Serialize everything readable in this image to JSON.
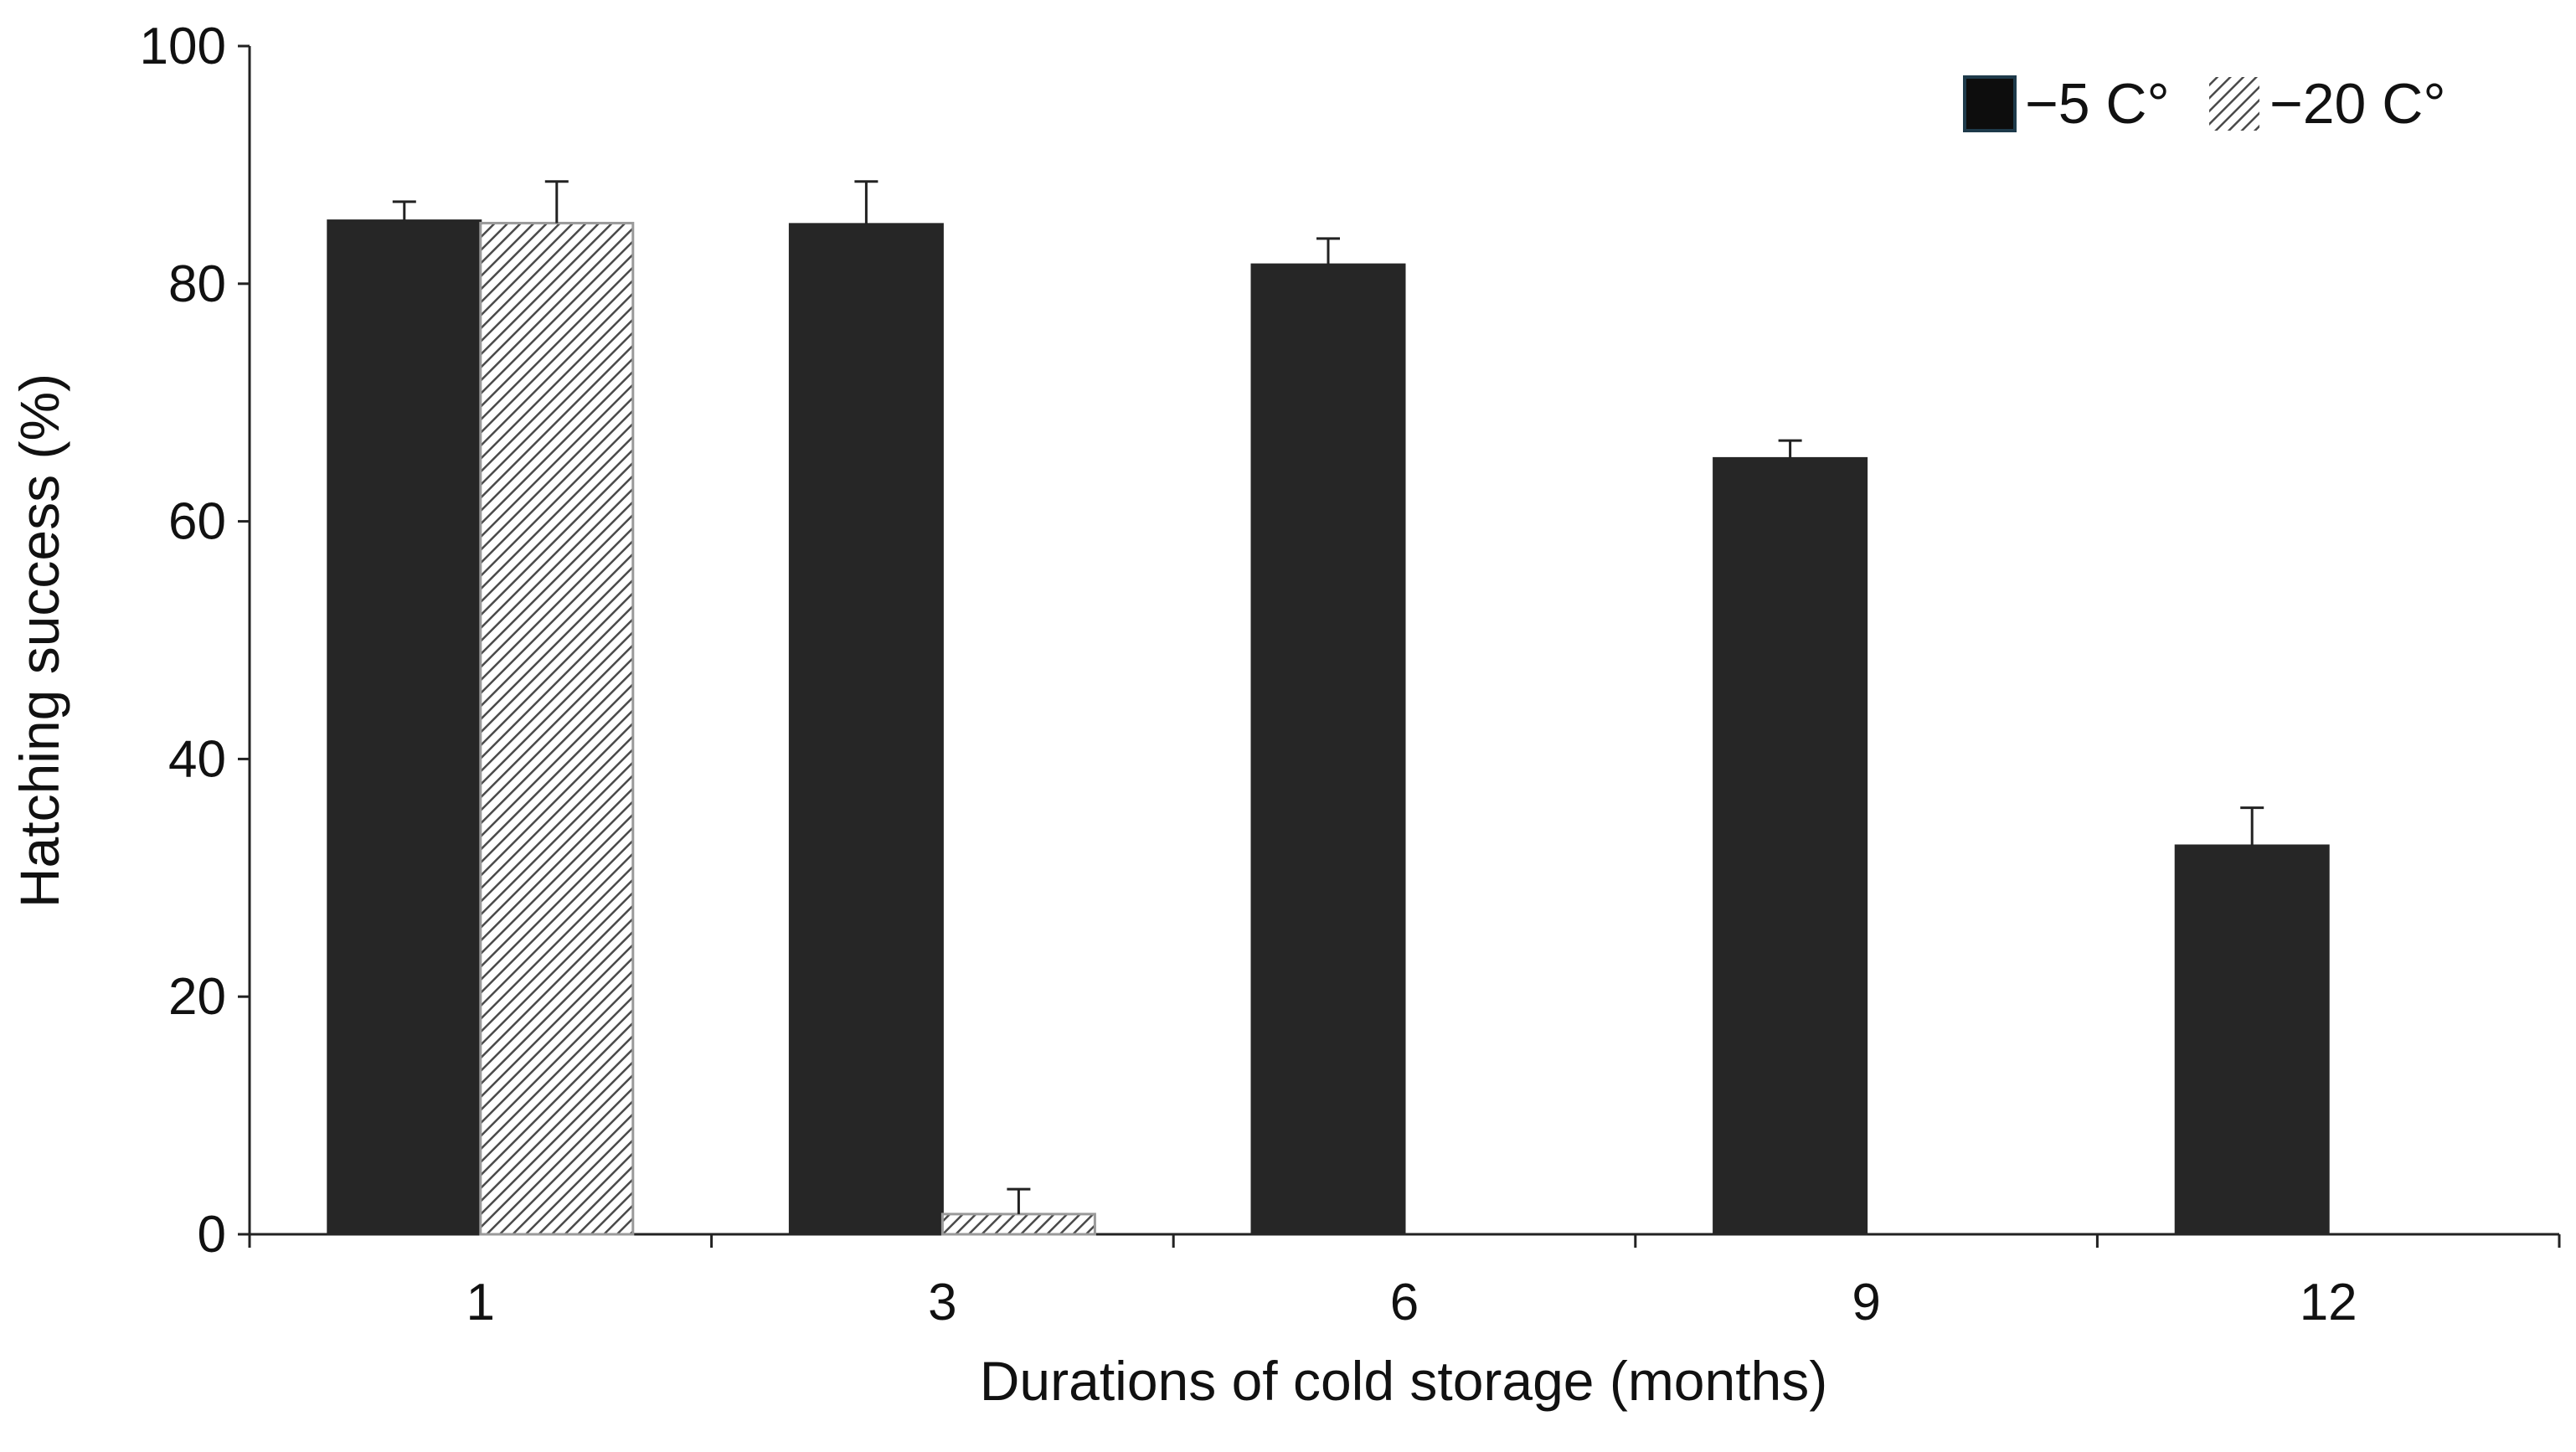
{
  "chart_data": {
    "type": "bar",
    "title": "",
    "xlabel": "Durations of cold storage (months)",
    "ylabel": "Hatching success (%)",
    "categories": [
      "1",
      "3",
      "6",
      "9",
      "12"
    ],
    "ylim": [
      0,
      100
    ],
    "yticks": [
      0,
      20,
      40,
      60,
      80,
      100
    ],
    "grid": false,
    "legend_position": "top-right",
    "series": [
      {
        "name": "−5 C°",
        "pattern": "solid",
        "color": "#262626",
        "values": [
          85.3,
          85.0,
          81.6,
          65.3,
          32.7
        ],
        "errors": [
          1.6,
          3.6,
          2.2,
          1.5,
          3.2
        ]
      },
      {
        "name": "−20 C°",
        "pattern": "diagonal-hatch",
        "color": "#9a9a9a",
        "values": [
          85.1,
          1.7,
          0,
          0,
          0
        ],
        "errors": [
          3.5,
          2.1,
          0,
          0,
          0
        ]
      }
    ]
  }
}
